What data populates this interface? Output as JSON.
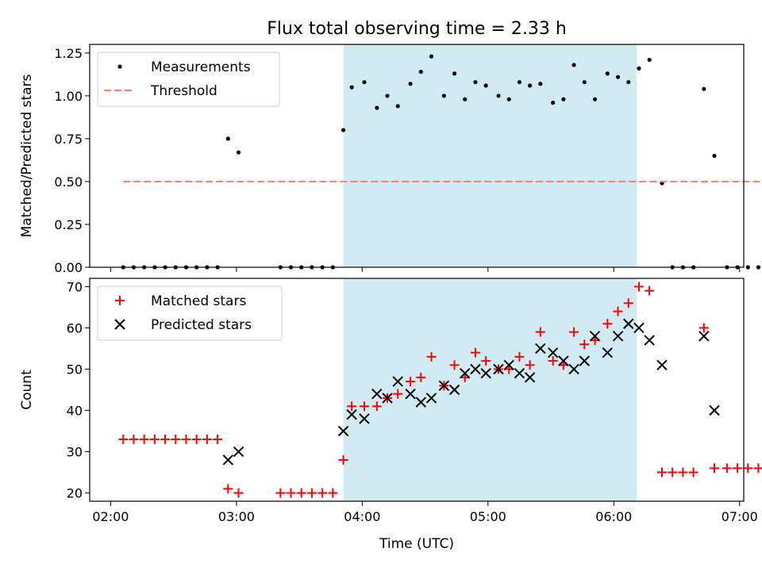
{
  "figure": {
    "title": "Flux total observing time = 2.33 h",
    "xlabel": "Time (UTC)",
    "xticks": [
      {
        "v": 120,
        "label": "02:00"
      },
      {
        "v": 180,
        "label": "03:00"
      },
      {
        "v": 240,
        "label": "04:00"
      },
      {
        "v": 300,
        "label": "05:00"
      },
      {
        "v": 360,
        "label": "06:00"
      },
      {
        "v": 420,
        "label": "07:00"
      }
    ],
    "xlim": [
      110,
      422
    ],
    "shaded_span": [
      231,
      371
    ],
    "shade_color": "#add8e6"
  },
  "chart_data": [
    {
      "type": "scatter",
      "ylabel": "Matched/Predicted stars",
      "ylim": [
        0,
        1.3
      ],
      "yticks": [
        {
          "v": 0,
          "label": "0.00"
        },
        {
          "v": 0.25,
          "label": "0.25"
        },
        {
          "v": 0.5,
          "label": "0.50"
        },
        {
          "v": 0.75,
          "label": "0.75"
        },
        {
          "v": 1.0,
          "label": "1.00"
        },
        {
          "v": 1.25,
          "label": "1.25"
        }
      ],
      "legend": {
        "position": "top-left",
        "entries": [
          "Measurements",
          "Threshold"
        ]
      },
      "series": [
        {
          "name": "Measurements",
          "marker": "dot",
          "color": "#000000",
          "points": [
            [
              126,
              0
            ],
            [
              131,
              0
            ],
            [
              136,
              0
            ],
            [
              141,
              0
            ],
            [
              146,
              0
            ],
            [
              151,
              0
            ],
            [
              156,
              0
            ],
            [
              161,
              0
            ],
            [
              166,
              0
            ],
            [
              171,
              0
            ],
            [
              176,
              0.75
            ],
            [
              181,
              0.67
            ],
            [
              201,
              0
            ],
            [
              206,
              0
            ],
            [
              211,
              0
            ],
            [
              216,
              0
            ],
            [
              221,
              0
            ],
            [
              226,
              0
            ],
            [
              231,
              0.8
            ],
            [
              235,
              1.05
            ],
            [
              241,
              1.08
            ],
            [
              247,
              0.93
            ],
            [
              252,
              1.0
            ],
            [
              257,
              0.94
            ],
            [
              263,
              1.07
            ],
            [
              268,
              1.14
            ],
            [
              273,
              1.23
            ],
            [
              279,
              1.0
            ],
            [
              284,
              1.13
            ],
            [
              289,
              0.98
            ],
            [
              294,
              1.08
            ],
            [
              299,
              1.06
            ],
            [
              305,
              1.0
            ],
            [
              310,
              0.98
            ],
            [
              315,
              1.08
            ],
            [
              320,
              1.06
            ],
            [
              325,
              1.07
            ],
            [
              331,
              0.96
            ],
            [
              336,
              0.98
            ],
            [
              341,
              1.18
            ],
            [
              346,
              1.08
            ],
            [
              351,
              0.98
            ],
            [
              357,
              1.13
            ],
            [
              362,
              1.11
            ],
            [
              367,
              1.08
            ],
            [
              372,
              1.16
            ],
            [
              377,
              1.21
            ],
            [
              383,
              0.49
            ],
            [
              388,
              0
            ],
            [
              393,
              0
            ],
            [
              398,
              0
            ],
            [
              403,
              1.04
            ],
            [
              408,
              0.65
            ],
            [
              414,
              0
            ],
            [
              419,
              0
            ],
            [
              424,
              0
            ],
            [
              429,
              0
            ],
            [
              434,
              0
            ]
          ]
        },
        {
          "name": "Threshold",
          "marker": "dashed-line",
          "color": "#ff7f7f",
          "x": [
            126,
            438
          ],
          "value": 0.5
        }
      ]
    },
    {
      "type": "scatter",
      "ylabel": "Count",
      "ylim": [
        18,
        72
      ],
      "yticks": [
        {
          "v": 20,
          "label": "20"
        },
        {
          "v": 30,
          "label": "30"
        },
        {
          "v": 40,
          "label": "40"
        },
        {
          "v": 50,
          "label": "50"
        },
        {
          "v": 60,
          "label": "60"
        },
        {
          "v": 70,
          "label": "70"
        }
      ],
      "legend": {
        "position": "top-left",
        "entries": [
          "Matched stars",
          "Predicted stars"
        ]
      },
      "series": [
        {
          "name": "Matched stars",
          "marker": "plus",
          "color": "#ff0000",
          "points": [
            [
              126,
              33
            ],
            [
              131,
              33
            ],
            [
              136,
              33
            ],
            [
              141,
              33
            ],
            [
              146,
              33
            ],
            [
              151,
              33
            ],
            [
              156,
              33
            ],
            [
              161,
              33
            ],
            [
              166,
              33
            ],
            [
              171,
              33
            ],
            [
              176,
              21
            ],
            [
              181,
              20
            ],
            [
              201,
              20
            ],
            [
              206,
              20
            ],
            [
              211,
              20
            ],
            [
              216,
              20
            ],
            [
              221,
              20
            ],
            [
              226,
              20
            ],
            [
              231,
              28
            ],
            [
              235,
              41
            ],
            [
              241,
              41
            ],
            [
              247,
              41
            ],
            [
              252,
              43
            ],
            [
              257,
              44
            ],
            [
              263,
              47
            ],
            [
              268,
              48
            ],
            [
              273,
              53
            ],
            [
              279,
              46
            ],
            [
              284,
              51
            ],
            [
              289,
              48
            ],
            [
              294,
              54
            ],
            [
              299,
              52
            ],
            [
              305,
              50
            ],
            [
              310,
              50
            ],
            [
              315,
              53
            ],
            [
              320,
              51
            ],
            [
              325,
              59
            ],
            [
              331,
              52
            ],
            [
              336,
              51
            ],
            [
              341,
              59
            ],
            [
              346,
              56
            ],
            [
              351,
              57
            ],
            [
              357,
              61
            ],
            [
              362,
              64
            ],
            [
              367,
              66
            ],
            [
              372,
              70
            ],
            [
              377,
              69
            ],
            [
              383,
              25
            ],
            [
              388,
              25
            ],
            [
              393,
              25
            ],
            [
              398,
              25
            ],
            [
              403,
              60
            ],
            [
              408,
              26
            ],
            [
              414,
              26
            ],
            [
              419,
              26
            ],
            [
              424,
              26
            ],
            [
              429,
              26
            ],
            [
              434,
              26
            ]
          ]
        },
        {
          "name": "Predicted stars",
          "marker": "x",
          "color": "#000000",
          "points": [
            [
              176,
              28
            ],
            [
              181,
              30
            ],
            [
              231,
              35
            ],
            [
              235,
              39
            ],
            [
              241,
              38
            ],
            [
              247,
              44
            ],
            [
              252,
              43
            ],
            [
              257,
              47
            ],
            [
              263,
              44
            ],
            [
              268,
              42
            ],
            [
              273,
              43
            ],
            [
              279,
              46
            ],
            [
              284,
              45
            ],
            [
              289,
              49
            ],
            [
              294,
              50
            ],
            [
              299,
              49
            ],
            [
              305,
              50
            ],
            [
              310,
              51
            ],
            [
              315,
              49
            ],
            [
              320,
              48
            ],
            [
              325,
              55
            ],
            [
              331,
              54
            ],
            [
              336,
              52
            ],
            [
              341,
              50
            ],
            [
              346,
              52
            ],
            [
              351,
              58
            ],
            [
              357,
              54
            ],
            [
              362,
              58
            ],
            [
              367,
              61
            ],
            [
              372,
              60
            ],
            [
              377,
              57
            ],
            [
              383,
              51
            ],
            [
              403,
              58
            ],
            [
              408,
              40
            ]
          ]
        }
      ]
    }
  ]
}
